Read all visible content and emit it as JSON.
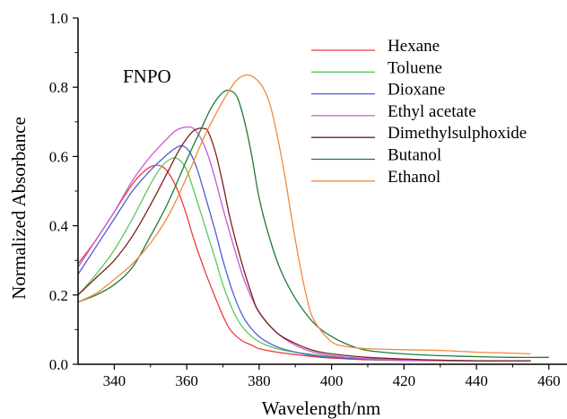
{
  "chart_data": {
    "type": "line",
    "title": "",
    "annotation": "FNPO",
    "xlabel": "Wavelength/nm",
    "ylabel": "Normalized Absorbance",
    "xlim": [
      330,
      465
    ],
    "ylim": [
      0,
      1.0
    ],
    "xticks": [
      340,
      360,
      380,
      400,
      420,
      440,
      460
    ],
    "yticks": [
      0.0,
      0.2,
      0.4,
      0.6,
      0.8,
      1.0
    ],
    "xtick_labels": [
      "340",
      "360",
      "380",
      "400",
      "420",
      "440",
      "460"
    ],
    "ytick_labels": [
      "0.0",
      "0.2",
      "0.4",
      "0.6",
      "0.8",
      "1.0"
    ],
    "grid": false,
    "legend_position": "top-right",
    "series": [
      {
        "name": "Hexane",
        "color": "#ee3b3b",
        "x": [
          330,
          335,
          340,
          345,
          348,
          350,
          352,
          354,
          356,
          358,
          360,
          362,
          365,
          368,
          370,
          372,
          375,
          378,
          380,
          385,
          390,
          395,
          400,
          410,
          420,
          430,
          440,
          450,
          455
        ],
        "y": [
          0.29,
          0.36,
          0.44,
          0.52,
          0.555,
          0.57,
          0.575,
          0.565,
          0.535,
          0.49,
          0.43,
          0.36,
          0.27,
          0.19,
          0.14,
          0.1,
          0.07,
          0.055,
          0.045,
          0.035,
          0.028,
          0.022,
          0.018,
          0.013,
          0.011,
          0.01,
          0.01,
          0.01,
          0.01
        ]
      },
      {
        "name": "Toluene",
        "color": "#5ac85a",
        "x": [
          330,
          335,
          340,
          345,
          350,
          353,
          356,
          358,
          360,
          362,
          365,
          368,
          370,
          373,
          376,
          380,
          385,
          390,
          395,
          400,
          410,
          420,
          430,
          440,
          450,
          455
        ],
        "y": [
          0.2,
          0.26,
          0.33,
          0.42,
          0.52,
          0.57,
          0.595,
          0.59,
          0.56,
          0.5,
          0.4,
          0.3,
          0.23,
          0.15,
          0.1,
          0.065,
          0.045,
          0.035,
          0.028,
          0.022,
          0.015,
          0.012,
          0.011,
          0.01,
          0.01,
          0.01
        ]
      },
      {
        "name": "Dioxane",
        "color": "#4a5fd0",
        "x": [
          330,
          335,
          340,
          345,
          350,
          354,
          357,
          359,
          361,
          363,
          365,
          368,
          370,
          373,
          376,
          380,
          385,
          390,
          395,
          400,
          410,
          420,
          430,
          440,
          450,
          455
        ],
        "y": [
          0.26,
          0.34,
          0.42,
          0.5,
          0.56,
          0.6,
          0.625,
          0.63,
          0.61,
          0.56,
          0.49,
          0.38,
          0.3,
          0.2,
          0.13,
          0.08,
          0.05,
          0.035,
          0.025,
          0.02,
          0.014,
          0.012,
          0.011,
          0.01,
          0.01,
          0.01
        ]
      },
      {
        "name": "Ethyl acetate",
        "color": "#c85ad2",
        "x": [
          330,
          335,
          340,
          345,
          350,
          354,
          357,
          360,
          362,
          364,
          366,
          368,
          370,
          373,
          376,
          380,
          385,
          390,
          395,
          400,
          410,
          420,
          430,
          440,
          450,
          455
        ],
        "y": [
          0.28,
          0.36,
          0.44,
          0.53,
          0.6,
          0.645,
          0.675,
          0.685,
          0.68,
          0.65,
          0.6,
          0.53,
          0.45,
          0.34,
          0.24,
          0.15,
          0.09,
          0.055,
          0.035,
          0.025,
          0.016,
          0.012,
          0.011,
          0.01,
          0.01,
          0.01
        ]
      },
      {
        "name": "Dimethylsulphoxide",
        "color": "#7a1f1f",
        "x": [
          330,
          335,
          340,
          345,
          350,
          355,
          358,
          361,
          363,
          365,
          366,
          368,
          370,
          372,
          375,
          378,
          380,
          385,
          390,
          395,
          400,
          410,
          420,
          430,
          440,
          450,
          455
        ],
        "y": [
          0.2,
          0.25,
          0.3,
          0.37,
          0.46,
          0.56,
          0.62,
          0.665,
          0.68,
          0.68,
          0.67,
          0.61,
          0.52,
          0.42,
          0.3,
          0.2,
          0.15,
          0.09,
          0.06,
          0.04,
          0.03,
          0.02,
          0.015,
          0.012,
          0.01,
          0.01,
          0.01
        ]
      },
      {
        "name": "Butanol",
        "color": "#1f7a3a",
        "x": [
          330,
          335,
          340,
          345,
          350,
          355,
          360,
          364,
          367,
          370,
          372,
          374,
          376,
          378,
          380,
          383,
          386,
          390,
          395,
          400,
          405,
          410,
          420,
          430,
          440,
          450,
          460
        ],
        "y": [
          0.18,
          0.2,
          0.23,
          0.28,
          0.37,
          0.47,
          0.59,
          0.68,
          0.745,
          0.785,
          0.79,
          0.77,
          0.7,
          0.6,
          0.48,
          0.36,
          0.27,
          0.19,
          0.12,
          0.08,
          0.055,
          0.04,
          0.03,
          0.025,
          0.022,
          0.02,
          0.02
        ]
      },
      {
        "name": "Ethanol",
        "color": "#f08a3c",
        "x": [
          330,
          335,
          340,
          345,
          350,
          355,
          360,
          365,
          370,
          373,
          375,
          377,
          379,
          381,
          383,
          385,
          387,
          389,
          391,
          393,
          395,
          400,
          405,
          410,
          420,
          430,
          440,
          450,
          455
        ],
        "y": [
          0.18,
          0.205,
          0.245,
          0.29,
          0.35,
          0.43,
          0.54,
          0.66,
          0.76,
          0.81,
          0.83,
          0.835,
          0.825,
          0.8,
          0.75,
          0.66,
          0.55,
          0.42,
          0.3,
          0.2,
          0.13,
          0.065,
          0.05,
          0.045,
          0.042,
          0.04,
          0.035,
          0.032,
          0.03
        ]
      }
    ]
  }
}
